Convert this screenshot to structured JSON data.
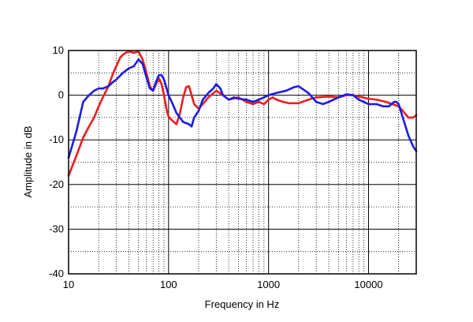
{
  "chart_data": {
    "type": "line",
    "title": "",
    "xlabel": "Frequency in Hz",
    "ylabel": "Amplitude in dB",
    "x_scale": "log",
    "xlim": [
      10,
      30000
    ],
    "ylim": [
      -40,
      10
    ],
    "grid": true,
    "legend": "none",
    "x_ticks": [
      10,
      100,
      1000,
      10000
    ],
    "x_tick_labels": [
      "10",
      "100",
      "1000",
      "10000"
    ],
    "y_ticks": [
      10,
      0,
      -10,
      -20,
      -30,
      -40
    ],
    "y_tick_labels": [
      "10",
      "0",
      "-10",
      "-20",
      "-30",
      "-40"
    ],
    "series": [
      {
        "color": "#ee1c1c",
        "points": [
          [
            10,
            -18
          ],
          [
            12,
            -13.5
          ],
          [
            14,
            -9.5
          ],
          [
            16,
            -7
          ],
          [
            18,
            -5
          ],
          [
            20,
            -2.5
          ],
          [
            22,
            -0.5
          ],
          [
            25,
            2
          ],
          [
            28,
            5
          ],
          [
            30,
            6.5
          ],
          [
            33,
            8.5
          ],
          [
            36,
            9.3
          ],
          [
            40,
            9.8
          ],
          [
            45,
            9.5
          ],
          [
            50,
            9.8
          ],
          [
            55,
            8
          ],
          [
            60,
            5
          ],
          [
            65,
            2
          ],
          [
            70,
            1
          ],
          [
            75,
            2.5
          ],
          [
            80,
            3.8
          ],
          [
            85,
            2.5
          ],
          [
            90,
            0
          ],
          [
            95,
            -3
          ],
          [
            100,
            -4.8
          ],
          [
            110,
            -5.8
          ],
          [
            120,
            -6.5
          ],
          [
            130,
            -4
          ],
          [
            140,
            -0.5
          ],
          [
            150,
            1.8
          ],
          [
            160,
            2
          ],
          [
            170,
            0
          ],
          [
            180,
            -2
          ],
          [
            200,
            -3
          ],
          [
            220,
            -2
          ],
          [
            250,
            -0.5
          ],
          [
            300,
            1
          ],
          [
            350,
            0
          ],
          [
            400,
            -1
          ],
          [
            500,
            -0.5
          ],
          [
            600,
            -1.5
          ],
          [
            700,
            -2
          ],
          [
            800,
            -1.5
          ],
          [
            900,
            -2
          ],
          [
            1000,
            -1
          ],
          [
            1100,
            -0.5
          ],
          [
            1200,
            -1
          ],
          [
            1400,
            -1.5
          ],
          [
            1600,
            -1.8
          ],
          [
            2000,
            -1.8
          ],
          [
            2500,
            -1
          ],
          [
            3000,
            -0.5
          ],
          [
            4000,
            -0.3
          ],
          [
            5000,
            -0.5
          ],
          [
            6000,
            0
          ],
          [
            7000,
            0
          ],
          [
            8000,
            -0.3
          ],
          [
            10000,
            -0.8
          ],
          [
            12000,
            -1
          ],
          [
            15000,
            -1.5
          ],
          [
            20000,
            -2.5
          ],
          [
            22000,
            -3.5
          ],
          [
            25000,
            -5
          ],
          [
            28000,
            -5
          ],
          [
            30000,
            -4.5
          ]
        ]
      },
      {
        "color": "#1c1ce6",
        "points": [
          [
            10,
            -14
          ],
          [
            12,
            -8
          ],
          [
            14,
            -1.5
          ],
          [
            16,
            0
          ],
          [
            18,
            1
          ],
          [
            20,
            1.5
          ],
          [
            22,
            1.5
          ],
          [
            25,
            2
          ],
          [
            28,
            3
          ],
          [
            30,
            3.5
          ],
          [
            35,
            5
          ],
          [
            40,
            6
          ],
          [
            45,
            6.5
          ],
          [
            50,
            8
          ],
          [
            55,
            7
          ],
          [
            60,
            4
          ],
          [
            65,
            1.5
          ],
          [
            70,
            1
          ],
          [
            75,
            3
          ],
          [
            80,
            4.5
          ],
          [
            85,
            4.5
          ],
          [
            90,
            3.5
          ],
          [
            100,
            0
          ],
          [
            110,
            -2
          ],
          [
            120,
            -4
          ],
          [
            140,
            -6
          ],
          [
            160,
            -6.5
          ],
          [
            170,
            -7
          ],
          [
            180,
            -5
          ],
          [
            200,
            -3.5
          ],
          [
            220,
            -1
          ],
          [
            250,
            0.5
          ],
          [
            280,
            1.5
          ],
          [
            300,
            2.5
          ],
          [
            330,
            1.5
          ],
          [
            350,
            0
          ],
          [
            400,
            -1
          ],
          [
            450,
            -0.5
          ],
          [
            500,
            -0.8
          ],
          [
            600,
            -1
          ],
          [
            700,
            -1.5
          ],
          [
            800,
            -1
          ],
          [
            900,
            -0.5
          ],
          [
            1000,
            0
          ],
          [
            1200,
            0.5
          ],
          [
            1500,
            1
          ],
          [
            1800,
            1.8
          ],
          [
            2000,
            2
          ],
          [
            2500,
            0.5
          ],
          [
            3000,
            -1.5
          ],
          [
            3500,
            -2
          ],
          [
            4000,
            -1.5
          ],
          [
            5000,
            -0.5
          ],
          [
            6000,
            0.2
          ],
          [
            7000,
            0
          ],
          [
            8000,
            -1
          ],
          [
            10000,
            -2
          ],
          [
            12000,
            -2
          ],
          [
            14000,
            -2.5
          ],
          [
            16000,
            -2.5
          ],
          [
            18000,
            -1.5
          ],
          [
            19000,
            -1.5
          ],
          [
            20000,
            -2
          ],
          [
            22000,
            -5
          ],
          [
            25000,
            -9
          ],
          [
            28000,
            -11.5
          ],
          [
            30000,
            -12.5
          ]
        ]
      }
    ]
  }
}
